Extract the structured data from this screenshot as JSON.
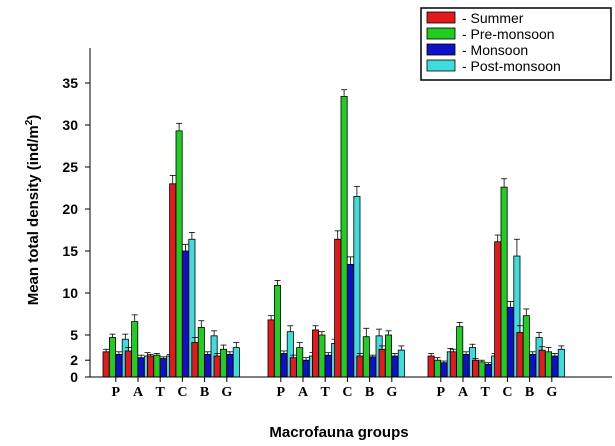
{
  "chart_data": {
    "type": "bar",
    "xlabel": "Macrofauna groups",
    "ylabel_main": "Mean total density (ind/m",
    "ylabel_sup": "2",
    "ylabel_close": ")",
    "ylim": [
      0,
      37
    ],
    "yticks": [
      0,
      2,
      5,
      10,
      15,
      20,
      25,
      30,
      35
    ],
    "grid": false,
    "legend_position": "top-right",
    "group_labels": [
      "P",
      "A",
      "T",
      "C",
      "B",
      "G"
    ],
    "legend": [
      {
        "name": "Summer",
        "label": "- Summer",
        "color": "#e31a1c"
      },
      {
        "name": "Pre-monsoon",
        "label": "- Pre-monsoon",
        "color": "#22cc22"
      },
      {
        "name": "Monsoon",
        "label": "- Monsoon",
        "color": "#1010c8"
      },
      {
        "name": "Post-monsoon",
        "label": "- Post-monsoon",
        "color": "#3fdcdc"
      }
    ],
    "stations": [
      {
        "categories": [
          "P",
          "A",
          "T",
          "C",
          "B",
          "G"
        ],
        "series": [
          {
            "name": "Summer",
            "values": [
              3.0,
              3.1,
              2.5,
              23.0,
              4.1,
              2.5
            ],
            "errors": [
              0.3,
              0.4,
              0.2,
              1.0,
              0.6,
              0.3
            ]
          },
          {
            "name": "Pre-monsoon",
            "values": [
              4.7,
              6.6,
              2.6,
              29.3,
              5.9,
              3.3
            ],
            "errors": [
              0.4,
              0.8,
              0.2,
              0.9,
              0.8,
              0.5
            ]
          },
          {
            "name": "Monsoon",
            "values": [
              2.7,
              2.3,
              2.2,
              15.0,
              2.7,
              2.7
            ],
            "errors": [
              0.3,
              0.3,
              0.2,
              0.8,
              0.3,
              0.3
            ]
          },
          {
            "name": "Post-monsoon",
            "values": [
              4.5,
              2.5,
              2.5,
              16.4,
              4.9,
              3.5
            ],
            "errors": [
              0.6,
              0.4,
              0.2,
              0.8,
              0.6,
              0.6
            ]
          }
        ]
      },
      {
        "categories": [
          "P",
          "A",
          "T",
          "C",
          "B",
          "G"
        ],
        "series": [
          {
            "name": "Summer",
            "values": [
              6.8,
              2.3,
              5.6,
              16.4,
              2.5,
              3.3
            ],
            "errors": [
              0.5,
              0.3,
              0.5,
              1.0,
              0.3,
              0.4
            ]
          },
          {
            "name": "Pre-monsoon",
            "values": [
              10.9,
              3.5,
              5.0,
              33.4,
              4.8,
              5.0
            ],
            "errors": [
              0.6,
              0.6,
              0.4,
              0.8,
              1.0,
              0.5
            ]
          },
          {
            "name": "Monsoon",
            "values": [
              2.8,
              2.0,
              2.6,
              13.4,
              2.4,
              2.5
            ],
            "errors": [
              0.3,
              0.3,
              0.3,
              0.9,
              0.2,
              0.3
            ]
          },
          {
            "name": "Post-monsoon",
            "values": [
              5.4,
              2.5,
              4.0,
              21.5,
              4.9,
              3.2
            ],
            "errors": [
              0.7,
              0.4,
              0.5,
              1.2,
              0.8,
              0.5
            ]
          }
        ]
      },
      {
        "categories": [
          "P",
          "A",
          "T",
          "C",
          "B",
          "G"
        ],
        "series": [
          {
            "name": "Summer",
            "values": [
              2.5,
              3.0,
              2.0,
              16.1,
              5.3,
              3.2
            ],
            "errors": [
              0.3,
              0.3,
              0.2,
              0.8,
              0.8,
              0.4
            ]
          },
          {
            "name": "Pre-monsoon",
            "values": [
              2.0,
              6.0,
              1.8,
              22.6,
              7.3,
              3.0
            ],
            "errors": [
              0.3,
              0.5,
              0.2,
              1.0,
              0.8,
              0.5
            ]
          },
          {
            "name": "Monsoon",
            "values": [
              1.7,
              2.7,
              1.5,
              8.3,
              2.7,
              2.5
            ],
            "errors": [
              0.2,
              0.3,
              0.2,
              0.7,
              0.3,
              0.3
            ]
          },
          {
            "name": "Post-monsoon",
            "values": [
              3.0,
              3.5,
              2.5,
              14.4,
              4.7,
              3.3
            ],
            "errors": [
              0.4,
              0.4,
              0.3,
              2.0,
              0.6,
              0.4
            ]
          }
        ]
      }
    ]
  }
}
